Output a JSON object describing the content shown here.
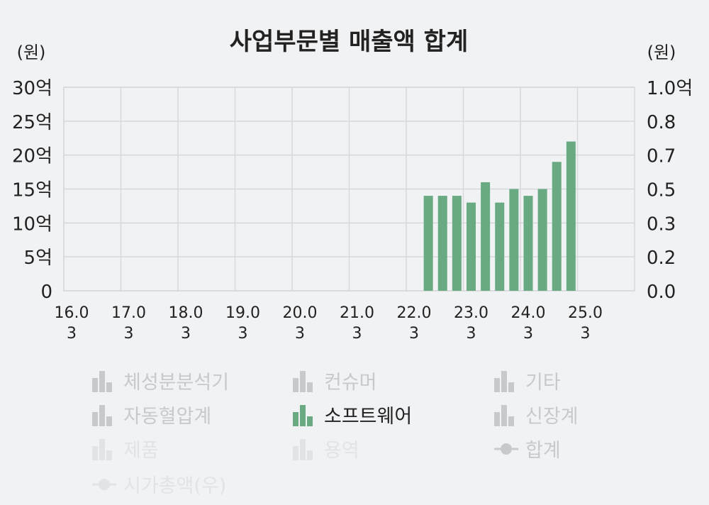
{
  "chart_data": {
    "type": "bar",
    "title": "사업부문별 매출액 합계",
    "left_unit": "(원)",
    "right_unit": "(원)",
    "left_ticks": [
      "0",
      "5억",
      "10억",
      "15억",
      "20억",
      "25억",
      "30억"
    ],
    "right_ticks": [
      "0.0",
      "0.2",
      "0.3",
      "0.5",
      "0.7",
      "0.8",
      "1.0억"
    ],
    "ylim": [
      0,
      30
    ],
    "x_ticks": [
      {
        "year": "16.0",
        "month": "3"
      },
      {
        "year": "17.0",
        "month": "3"
      },
      {
        "year": "18.0",
        "month": "3"
      },
      {
        "year": "19.0",
        "month": "3"
      },
      {
        "year": "20.0",
        "month": "3"
      },
      {
        "year": "21.0",
        "month": "3"
      },
      {
        "year": "22.0",
        "month": "3"
      },
      {
        "year": "23.0",
        "month": "3"
      },
      {
        "year": "24.0",
        "month": "3"
      },
      {
        "year": "25.0",
        "month": "3"
      }
    ],
    "grid": true,
    "series": [
      {
        "name": "소프트웨어",
        "color": "#6aaa83",
        "quarters": [
          "22.06",
          "22.09",
          "22.12",
          "23.03",
          "23.06",
          "23.09",
          "23.12",
          "24.03",
          "24.06",
          "24.09",
          "24.12",
          "25.03"
        ],
        "values": [
          14,
          14,
          14,
          13,
          16,
          13,
          15,
          14,
          15,
          19,
          22,
          0
        ]
      }
    ]
  },
  "legend": [
    {
      "label": "체성분분석기",
      "icon": "bar-icon",
      "state": "inactive"
    },
    {
      "label": "컨슈머",
      "icon": "bar-icon",
      "state": "inactive"
    },
    {
      "label": "기타",
      "icon": "bar-icon",
      "state": "inactive"
    },
    {
      "label": "자동혈압계",
      "icon": "bar-icon",
      "state": "inactive"
    },
    {
      "label": "소프트웨어",
      "icon": "bar-icon",
      "state": "active",
      "color": "#6aaa83"
    },
    {
      "label": "신장계",
      "icon": "bar-icon",
      "state": "inactive"
    },
    {
      "label": "제품",
      "icon": "bar-icon",
      "state": "faint"
    },
    {
      "label": "용역",
      "icon": "bar-icon",
      "state": "faint"
    },
    {
      "label": "합계",
      "icon": "line-marker-icon",
      "state": "inactive"
    },
    {
      "label": "시가총액(우)",
      "icon": "line-marker-icon",
      "state": "faint"
    }
  ]
}
